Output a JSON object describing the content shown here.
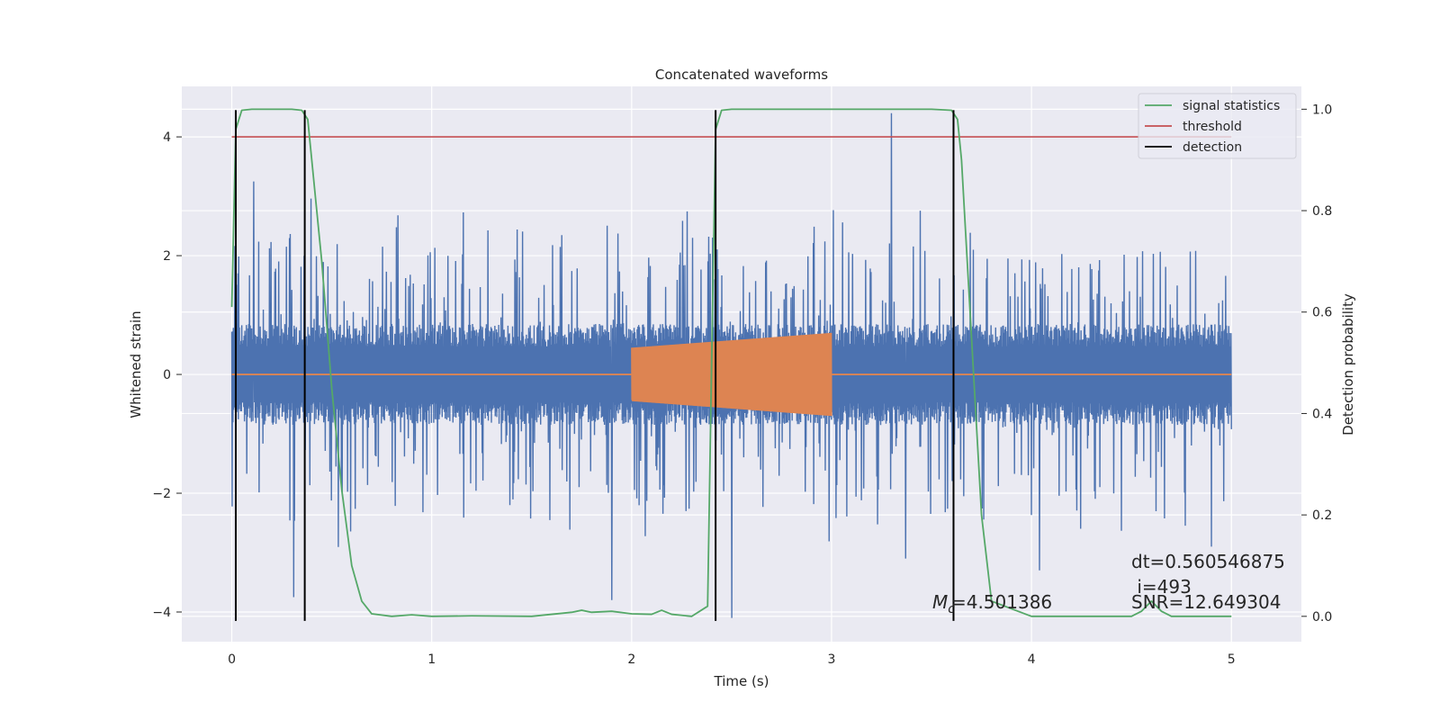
{
  "chart_data": {
    "type": "line",
    "title": "Concatenated waveforms",
    "xlabel": "Time (s)",
    "ylabel": "Whitened strain",
    "y2label": "Detection probability",
    "xlim": [
      -0.25,
      5.35
    ],
    "ylim": [
      -4.5,
      4.85
    ],
    "y2lim": [
      -0.05,
      1.045
    ],
    "x_ticks": [
      0,
      1,
      2,
      3,
      4,
      5
    ],
    "y_ticks": [
      -4,
      -2,
      0,
      2,
      4
    ],
    "y2_ticks": [
      0.0,
      0.2,
      0.4,
      0.6,
      0.8,
      1.0
    ],
    "x_tick_labels": [
      "0",
      "1",
      "2",
      "3",
      "4",
      "5"
    ],
    "y_tick_labels": [
      "−4",
      "−2",
      "0",
      "2",
      "4"
    ],
    "y2_tick_labels": [
      "0.0",
      "0.2",
      "0.4",
      "0.6",
      "0.8",
      "1.0"
    ],
    "grid": true,
    "legend_position": "top-right",
    "colors": {
      "strain": "#4c72b0",
      "template": "#dd8452",
      "signal_statistics": "#55a868",
      "threshold": "#c44e52",
      "detection": "#000000",
      "plot_bg": "#eaeaf2",
      "grid": "#ffffff"
    },
    "series": [
      {
        "name": "signal statistics",
        "axis": "right",
        "x": [
          0,
          0.02,
          0.05,
          0.1,
          0.2,
          0.3,
          0.35,
          0.38,
          0.4,
          0.45,
          0.5,
          0.55,
          0.6,
          0.65,
          0.7,
          0.8,
          0.9,
          1.0,
          1.2,
          1.5,
          1.7,
          1.75,
          1.8,
          1.9,
          2.0,
          2.1,
          2.15,
          2.2,
          2.3,
          2.38,
          2.4,
          2.42,
          2.45,
          2.5,
          3.0,
          3.5,
          3.6,
          3.63,
          3.65,
          3.7,
          3.75,
          3.8,
          4.0,
          4.5,
          4.55,
          4.6,
          4.65,
          4.7,
          4.8,
          5.0
        ],
        "y": [
          0.61,
          0.96,
          0.998,
          1.0,
          1.0,
          1.0,
          0.998,
          0.98,
          0.9,
          0.7,
          0.45,
          0.25,
          0.1,
          0.03,
          0.005,
          0.0,
          0.003,
          0.0,
          0.001,
          0.0,
          0.008,
          0.012,
          0.008,
          0.01,
          0.005,
          0.004,
          0.012,
          0.004,
          0.0,
          0.02,
          0.5,
          0.96,
          0.998,
          1.0,
          1.0,
          1.0,
          0.998,
          0.98,
          0.9,
          0.55,
          0.2,
          0.03,
          0.0,
          0.0,
          0.01,
          0.03,
          0.01,
          0.0,
          0.0,
          0.0
        ]
      },
      {
        "name": "threshold",
        "axis": "left",
        "x": [
          0,
          5
        ],
        "y": [
          4,
          4
        ]
      },
      {
        "name": "detection",
        "axis": "left",
        "x": [
          0.02,
          0.365,
          2.42,
          3.61
        ],
        "y_range": [
          -4.15,
          4.45
        ]
      },
      {
        "name": "",
        "role": "whitened strain",
        "axis": "left",
        "x_range": [
          0,
          5
        ],
        "envelope": 0.85,
        "typical_peak": 2.5,
        "extreme_spikes": [
          {
            "x": 0.31,
            "y": -3.75
          },
          {
            "x": 0.11,
            "y": 3.25
          },
          {
            "x": 1.9,
            "y": -3.8
          },
          {
            "x": 2.5,
            "y": -4.1
          },
          {
            "x": 3.3,
            "y": 4.4
          },
          {
            "x": 3.37,
            "y": -3.1
          },
          {
            "x": 4.04,
            "y": -3.3
          },
          {
            "x": 4.9,
            "y": -2.9
          }
        ]
      },
      {
        "name": "",
        "role": "template waveform",
        "axis": "left",
        "x_range": [
          2.0,
          3.0
        ],
        "amplitude_start": 0.45,
        "amplitude_end": 0.7,
        "baseline": 0
      }
    ],
    "annotations": {
      "dt": "dt=0.560546875",
      "i": " i=493",
      "snr": "SNR=12.649304",
      "mc_symbol": "M",
      "mc_subscript": "c",
      "mc_value": "=4.501386"
    }
  }
}
